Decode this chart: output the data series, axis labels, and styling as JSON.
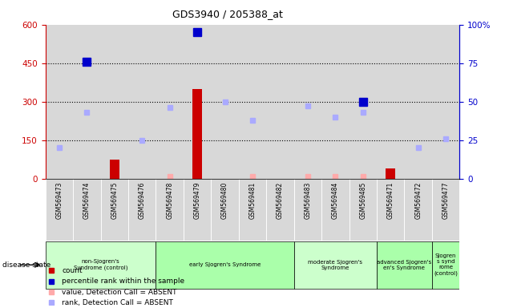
{
  "title": "GDS3940 / 205388_at",
  "samples": [
    "GSM569473",
    "GSM569474",
    "GSM569475",
    "GSM569476",
    "GSM569478",
    "GSM569479",
    "GSM569480",
    "GSM569481",
    "GSM569482",
    "GSM569483",
    "GSM569484",
    "GSM569485",
    "GSM569471",
    "GSM569472",
    "GSM569477"
  ],
  "count_values": [
    null,
    null,
    75,
    null,
    null,
    350,
    null,
    null,
    null,
    null,
    null,
    null,
    40,
    null,
    null
  ],
  "rank_values": [
    null,
    76,
    null,
    null,
    null,
    95,
    null,
    null,
    null,
    null,
    null,
    50,
    null,
    null,
    null
  ],
  "value_absent": [
    null,
    null,
    null,
    null,
    10,
    15,
    null,
    8,
    null,
    8,
    8,
    8,
    null,
    null,
    null
  ],
  "rank_absent": [
    20,
    43,
    null,
    25,
    46,
    null,
    50,
    38,
    null,
    47,
    40,
    43,
    null,
    20,
    26
  ],
  "groups": [
    {
      "label": "non-Sjogren's\nSyndrome (control)",
      "start": 0,
      "end": 4,
      "color": "#ccffcc"
    },
    {
      "label": "early Sjogren's Syndrome",
      "start": 4,
      "end": 9,
      "color": "#aaffaa"
    },
    {
      "label": "moderate Sjogren's\nSyndrome",
      "start": 9,
      "end": 12,
      "color": "#ccffcc"
    },
    {
      "label": "advanced Sjogren's\nen's Syndrome",
      "start": 12,
      "end": 14,
      "color": "#aaffaa"
    },
    {
      "label": "Sjogren\ns synd\nrome\n(control)",
      "start": 14,
      "end": 15,
      "color": "#aaffaa"
    }
  ],
  "ylim_left": [
    0,
    600
  ],
  "ylim_right": [
    0,
    100
  ],
  "left_ticks": [
    0,
    150,
    300,
    450,
    600
  ],
  "right_ticks": [
    0,
    25,
    50,
    75,
    100
  ],
  "left_color": "#cc0000",
  "right_color": "#0000cc",
  "count_color": "#cc0000",
  "rank_color": "#0000cc",
  "value_absent_color": "#ffaaaa",
  "rank_absent_color": "#aaaaff",
  "bg_color": "#d8d8d8",
  "dotted_line_values": [
    150,
    300,
    450
  ]
}
